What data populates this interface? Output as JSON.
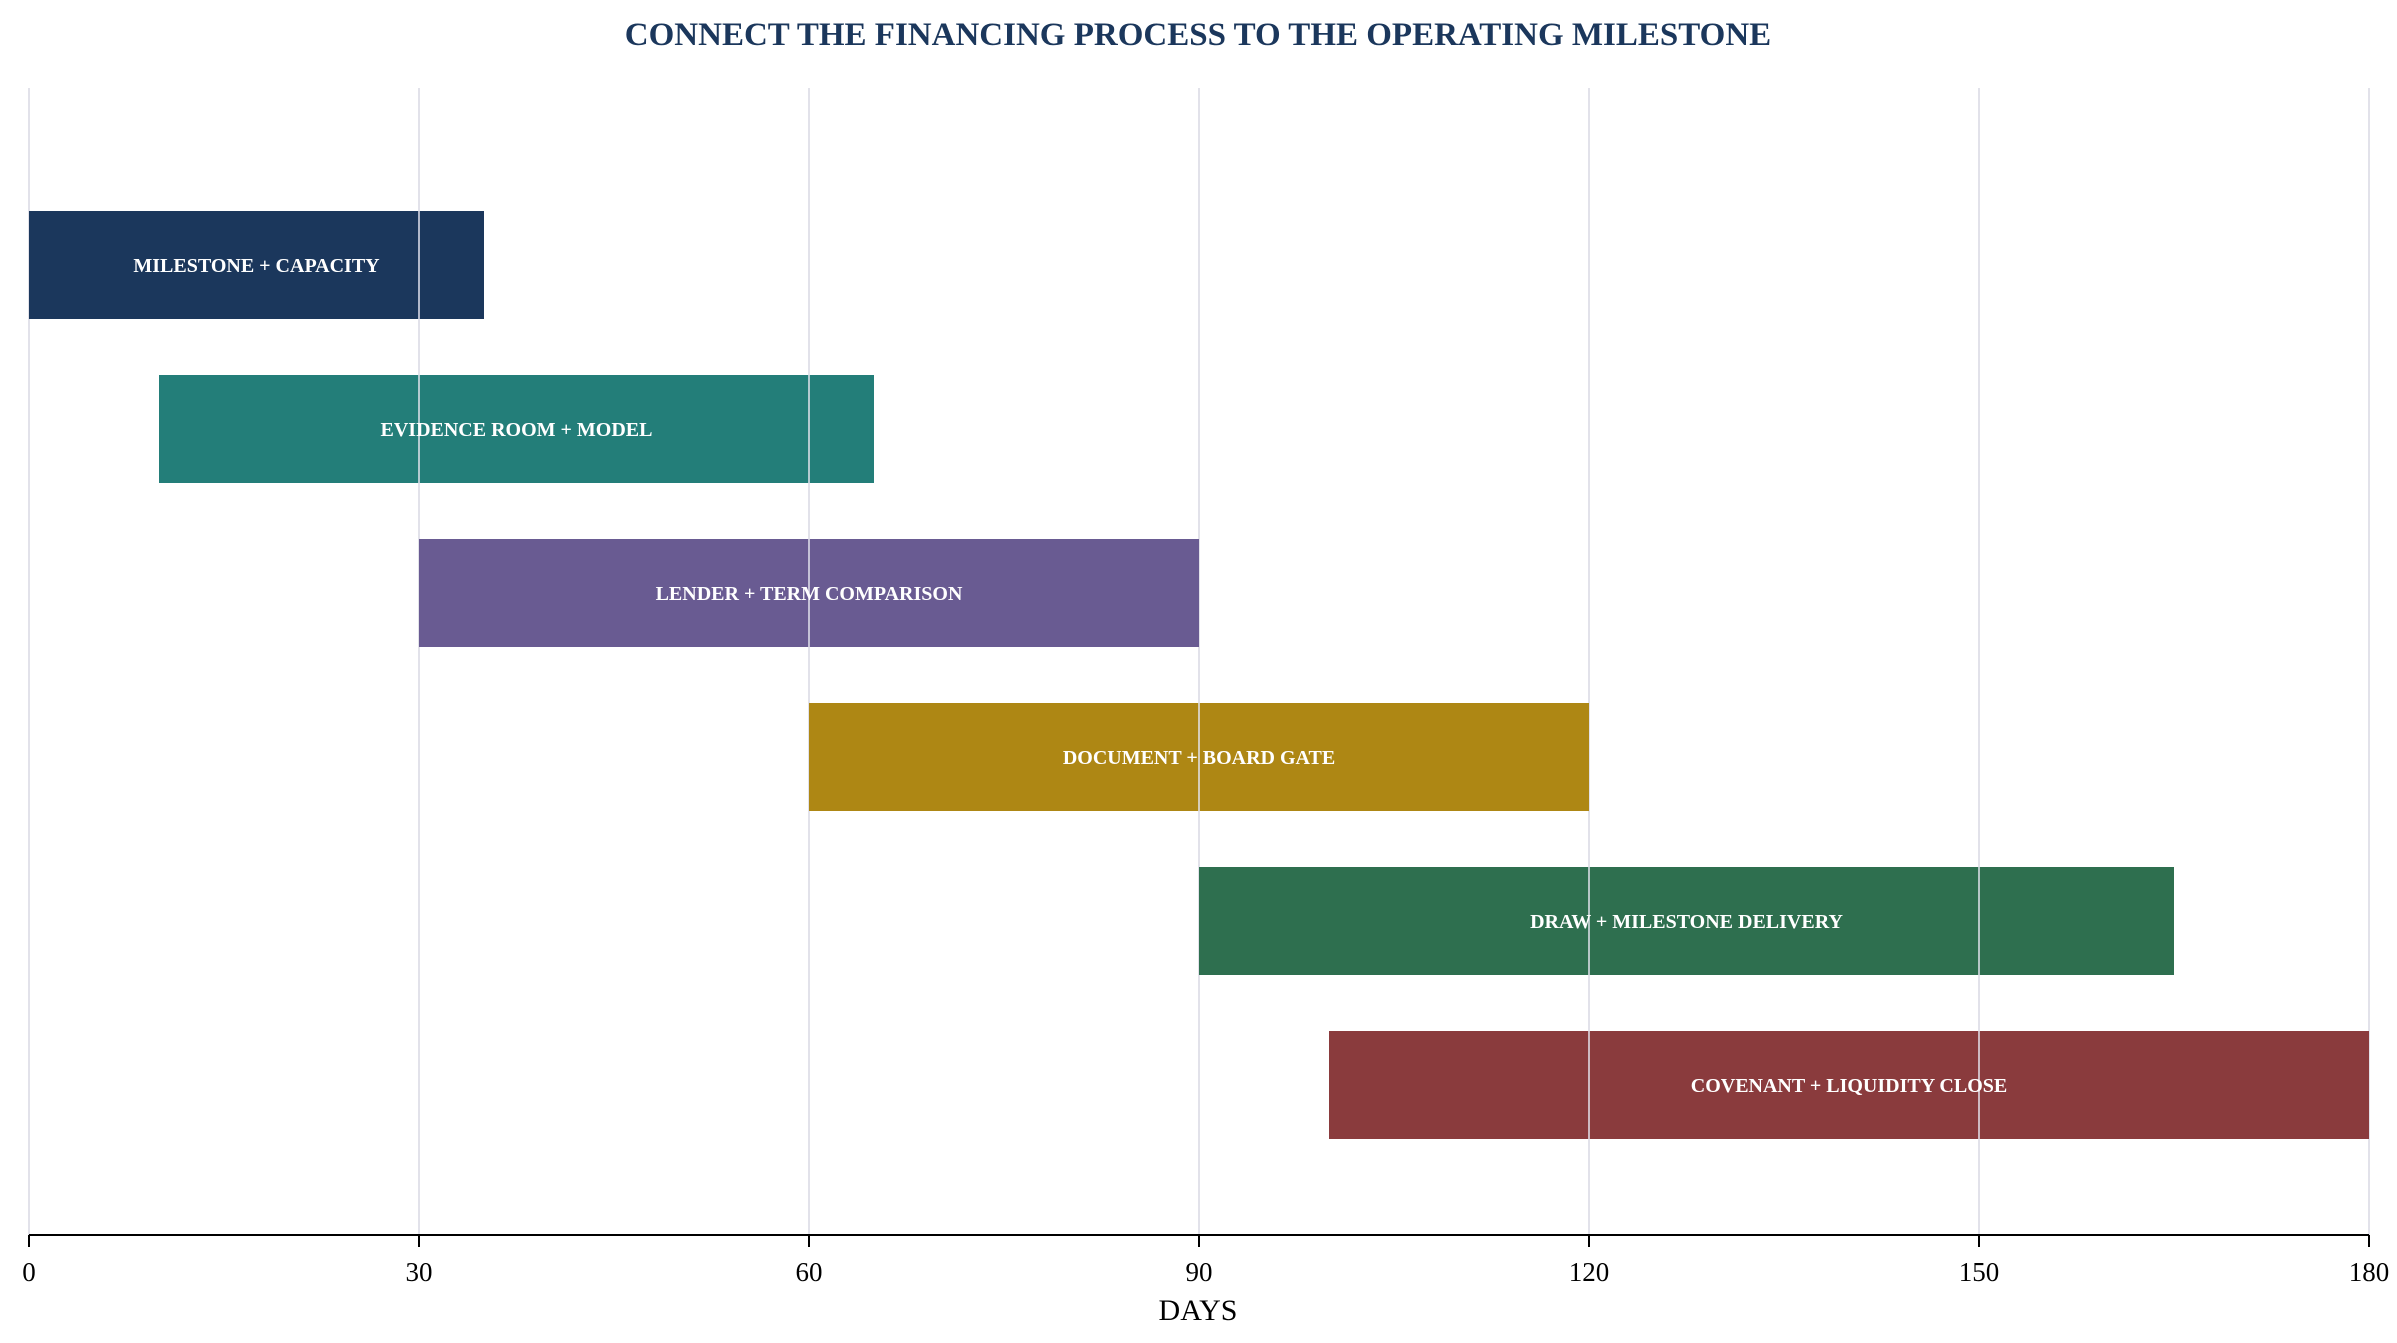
{
  "chart_data": {
    "type": "bar",
    "orientation": "horizontal-gantt",
    "title": "CONNECT THE FINANCING PROCESS TO THE OPERATING MILESTONE",
    "xlabel": "DAYS",
    "ylabel": "",
    "xlim": [
      0,
      180
    ],
    "xticks": [
      0,
      30,
      60,
      90,
      120,
      150,
      180
    ],
    "grid": "vertical",
    "tasks": [
      {
        "label": "MILESTONE + CAPACITY",
        "start": 0,
        "end": 35,
        "color": "#1b375c"
      },
      {
        "label": "EVIDENCE ROOM + MODEL",
        "start": 10,
        "end": 65,
        "color": "#237e79"
      },
      {
        "label": "LENDER + TERM COMPARISON",
        "start": 30,
        "end": 90,
        "color": "#695b92"
      },
      {
        "label": "DOCUMENT + BOARD GATE",
        "start": 60,
        "end": 120,
        "color": "#ae8714"
      },
      {
        "label": "DRAW + MILESTONE DELIVERY",
        "start": 90,
        "end": 165,
        "color": "#2e6f4f"
      },
      {
        "label": "COVENANT + LIQUIDITY CLOSE",
        "start": 100,
        "end": 180,
        "color": "#8a3b3d"
      }
    ]
  },
  "colors": {
    "title": "#1b375c",
    "grid": "#d8d8e3",
    "axis": "#000000",
    "bar_text": "#ffffff"
  }
}
